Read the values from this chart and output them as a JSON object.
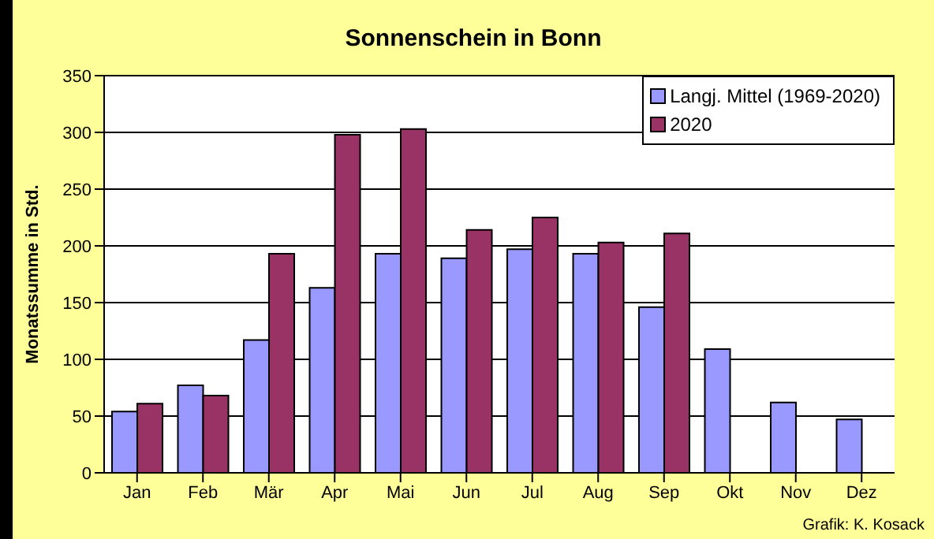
{
  "chart_data": {
    "type": "bar",
    "title": "Sonnenschein in Bonn",
    "ylabel": "Monatssumme in Std.",
    "annotations": [
      "Grafik: K. Kosack"
    ],
    "categories": [
      "Jan",
      "Feb",
      "Mär",
      "Apr",
      "Mai",
      "Jun",
      "Jul",
      "Aug",
      "Sep",
      "Okt",
      "Nov",
      "Dez"
    ],
    "series": [
      {
        "name": "Langj. Mittel (1969-2020)",
        "color": "#9999ff",
        "values": [
          54,
          77,
          117,
          163,
          193,
          189,
          197,
          193,
          146,
          109,
          62,
          47
        ]
      },
      {
        "name": "2020",
        "color": "#993366",
        "values": [
          61,
          68,
          193,
          298,
          303,
          214,
          225,
          203,
          211,
          null,
          null,
          null
        ]
      }
    ],
    "ylim": [
      0,
      350
    ],
    "yticks": [
      0,
      50,
      100,
      150,
      200,
      250,
      300,
      350
    ],
    "grid": "y",
    "legend": "top right"
  }
}
